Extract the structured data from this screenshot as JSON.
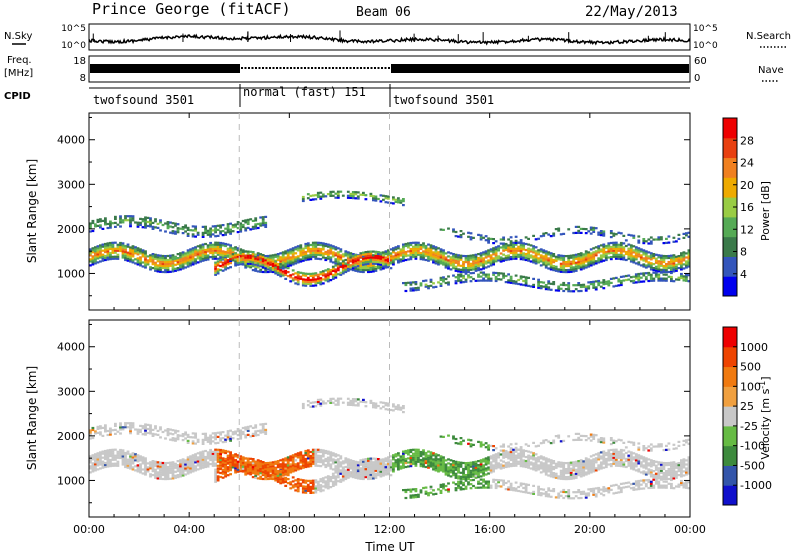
{
  "header": {
    "station": "Prince George (fitACF)",
    "beam": "Beam 06",
    "date": "22/May/2013"
  },
  "top_panels": {
    "nsky_label": "N.Sky",
    "nsky_ticks": [
      "10^5",
      "10^0"
    ],
    "nsearch_label": "N.Search",
    "freq_label_1": "Freq.",
    "freq_label_2": "[MHz]",
    "freq_ticks": [
      "18",
      "8"
    ],
    "nave_ticks": [
      "60",
      "0"
    ],
    "nave_label": "Nave",
    "cpid_label": "CPID",
    "cpid_segments": [
      "twofsound 3501",
      "normal (fast) 151",
      "twofsound 3501"
    ]
  },
  "colors": {
    "power_scale": [
      "#0000ee",
      "#3355bb",
      "#3a7a4a",
      "#55aa55",
      "#99cc44",
      "#eeaa00",
      "#f08020",
      "#e84010",
      "#ee0000"
    ],
    "velocity_scale": [
      "#ee0000",
      "#ee4400",
      "#f07a10",
      "#f0a040",
      "#c8c8c8",
      "#66bb44",
      "#3d8a3d",
      "#3355aa",
      "#1010cc"
    ]
  },
  "chart_data": [
    {
      "type": "line",
      "title": "N.Sky",
      "x": "Time UT",
      "y_scale": "log",
      "ylim": [
        1,
        100000
      ],
      "y_ticks": [
        "10^5",
        "10^0"
      ]
    },
    {
      "type": "line",
      "title": "Freq. [MHz] / Nave",
      "ylim": [
        8,
        18
      ],
      "y2lim": [
        0,
        60
      ],
      "segments": [
        {
          "start_hour": 0,
          "end_hour": 6,
          "value": "high"
        },
        {
          "start_hour": 6,
          "end_hour": 12,
          "value": "low"
        },
        {
          "start_hour": 12,
          "end_hour": 24,
          "value": "high"
        }
      ]
    },
    {
      "type": "heatmap",
      "ylabel": "Slant Range [km]",
      "xlim": [
        0,
        24
      ],
      "ylim": [
        180,
        4600
      ],
      "x_ticks": [
        "00:00",
        "04:00",
        "08:00",
        "12:00",
        "16:00",
        "20:00",
        "00:00"
      ],
      "y_ticks": [
        "1000",
        "2000",
        "3000",
        "4000"
      ],
      "colorbar_label": "Power [dB]",
      "colorbar_ticks": [
        "28",
        "24",
        "20",
        "16",
        "12",
        "8",
        "4"
      ]
    },
    {
      "type": "heatmap",
      "ylabel": "Slant Range [km]",
      "xlabel": "Time UT",
      "xlim": [
        0,
        24
      ],
      "ylim": [
        180,
        4600
      ],
      "x_ticks": [
        "00:00",
        "04:00",
        "08:00",
        "12:00",
        "16:00",
        "20:00",
        "00:00"
      ],
      "y_ticks": [
        "1000",
        "2000",
        "3000",
        "4000"
      ],
      "colorbar_label": "Velocity [m s",
      "colorbar_ticks": [
        "1000",
        "500",
        "100",
        "25",
        "-25",
        "-100",
        "-500",
        "-1000"
      ]
    }
  ]
}
